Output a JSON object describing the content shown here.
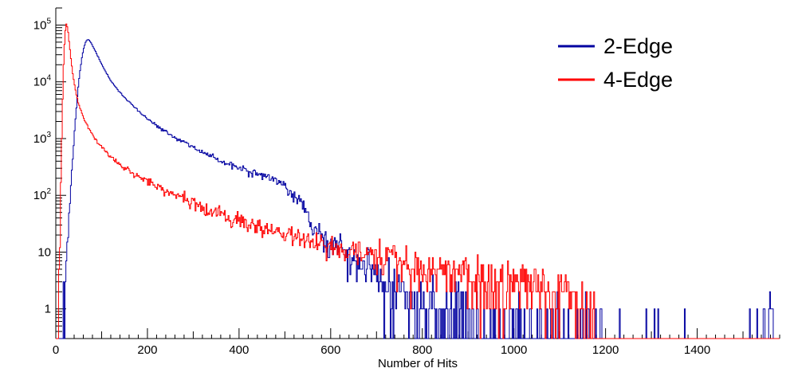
{
  "figure": {
    "background": "#ffffff",
    "axis_color": "#000000"
  },
  "chart_data": {
    "type": "line",
    "subtype": "histogram-step",
    "title": "",
    "xlabel": "Number of Hits",
    "ylabel": "",
    "y_scale": "log",
    "grid": false,
    "xlim": [
      0,
      1580
    ],
    "ylim": [
      0.3,
      200000
    ],
    "x_major_ticks": [
      0,
      200,
      400,
      600,
      800,
      1000,
      1200,
      1400
    ],
    "x_minor_step": 20,
    "y_decades": [
      0,
      1,
      2,
      3,
      4,
      5
    ],
    "legend": {
      "position": "top-right",
      "entries": [
        {
          "label": "2-Edge",
          "color": "#0000a0"
        },
        {
          "label": "4-Edge",
          "color": "#ff0000"
        }
      ]
    },
    "series": [
      {
        "name": "2-Edge",
        "color": "#0000a0",
        "bin_width": 2,
        "anchors": [
          [
            14,
            0.3
          ],
          [
            18,
            1.2
          ],
          [
            22,
            4
          ],
          [
            26,
            14
          ],
          [
            30,
            55
          ],
          [
            34,
            180
          ],
          [
            38,
            600
          ],
          [
            42,
            1800
          ],
          [
            46,
            4500
          ],
          [
            50,
            10000
          ],
          [
            54,
            18000
          ],
          [
            58,
            30000
          ],
          [
            62,
            42000
          ],
          [
            66,
            52000
          ],
          [
            70,
            56000
          ],
          [
            74,
            53000
          ],
          [
            80,
            44000
          ],
          [
            86,
            35000
          ],
          [
            92,
            28000
          ],
          [
            100,
            20500
          ],
          [
            110,
            14500
          ],
          [
            120,
            10500
          ],
          [
            135,
            7200
          ],
          [
            150,
            5300
          ],
          [
            170,
            3700
          ],
          [
            190,
            2600
          ],
          [
            210,
            1950
          ],
          [
            230,
            1500
          ],
          [
            250,
            1170
          ],
          [
            270,
            940
          ],
          [
            290,
            770
          ],
          [
            310,
            630
          ],
          [
            330,
            520
          ],
          [
            350,
            440
          ],
          [
            370,
            370
          ],
          [
            390,
            320
          ],
          [
            410,
            285
          ],
          [
            430,
            255
          ],
          [
            450,
            230
          ],
          [
            470,
            200
          ],
          [
            485,
            170
          ],
          [
            500,
            140
          ],
          [
            515,
            110
          ],
          [
            530,
            82
          ],
          [
            545,
            55
          ],
          [
            560,
            32
          ],
          [
            575,
            22
          ],
          [
            590,
            16
          ],
          [
            605,
            13
          ],
          [
            620,
            11
          ],
          [
            640,
            8.5
          ],
          [
            660,
            6.5
          ],
          [
            680,
            5
          ],
          [
            700,
            3.8
          ],
          [
            720,
            2.8
          ],
          [
            740,
            2.1
          ],
          [
            760,
            1.6
          ],
          [
            790,
            1.2
          ],
          [
            820,
            0.9
          ],
          [
            860,
            0.7
          ],
          [
            900,
            0.55
          ],
          [
            950,
            0.42
          ],
          [
            1000,
            0.34
          ],
          [
            1050,
            0.28
          ],
          [
            1100,
            0.24
          ],
          [
            1140,
            0.2
          ],
          [
            1180,
            0.14
          ],
          [
            1220,
            0.1
          ],
          [
            1260,
            0.09
          ],
          [
            1300,
            0.08
          ],
          [
            1330,
            0.03
          ],
          [
            1380,
            0.004
          ],
          [
            1480,
            0.004
          ],
          [
            1520,
            0.05
          ],
          [
            1545,
            0.2
          ],
          [
            1560,
            0.45
          ],
          [
            1568,
            0.45
          ]
        ]
      },
      {
        "name": "4-Edge",
        "color": "#ff0000",
        "bin_width": 2,
        "anchors": [
          [
            5,
            0.5
          ],
          [
            8,
            8
          ],
          [
            11,
            150
          ],
          [
            14,
            2500
          ],
          [
            17,
            20000
          ],
          [
            20,
            70000
          ],
          [
            23,
            105000
          ],
          [
            26,
            88000
          ],
          [
            29,
            52000
          ],
          [
            33,
            26000
          ],
          [
            37,
            14000
          ],
          [
            42,
            7800
          ],
          [
            47,
            5000
          ],
          [
            53,
            3400
          ],
          [
            60,
            2400
          ],
          [
            68,
            1750
          ],
          [
            76,
            1330
          ],
          [
            85,
            1020
          ],
          [
            95,
            800
          ],
          [
            105,
            640
          ],
          [
            115,
            530
          ],
          [
            130,
            410
          ],
          [
            145,
            330
          ],
          [
            160,
            272
          ],
          [
            175,
            228
          ],
          [
            190,
            192
          ],
          [
            210,
            158
          ],
          [
            230,
            132
          ],
          [
            250,
            111
          ],
          [
            270,
            94
          ],
          [
            290,
            80
          ],
          [
            310,
            68
          ],
          [
            330,
            59
          ],
          [
            350,
            51
          ],
          [
            375,
            43
          ],
          [
            400,
            36
          ],
          [
            425,
            31
          ],
          [
            450,
            27
          ],
          [
            475,
            23.5
          ],
          [
            500,
            20.5
          ],
          [
            530,
            17.5
          ],
          [
            560,
            15
          ],
          [
            590,
            13
          ],
          [
            620,
            11.3
          ],
          [
            650,
            9.9
          ],
          [
            680,
            8.7
          ],
          [
            710,
            7.7
          ],
          [
            740,
            6.8
          ],
          [
            770,
            6.1
          ],
          [
            800,
            5.5
          ],
          [
            830,
            5
          ],
          [
            860,
            4.5
          ],
          [
            890,
            4.1
          ],
          [
            920,
            3.7
          ],
          [
            950,
            3.4
          ],
          [
            980,
            3.1
          ],
          [
            1010,
            2.8
          ],
          [
            1040,
            2.5
          ],
          [
            1070,
            2.2
          ],
          [
            1100,
            2
          ],
          [
            1125,
            1.7
          ],
          [
            1145,
            1.3
          ],
          [
            1160,
            0.9
          ],
          [
            1172,
            0.5
          ],
          [
            1182,
            0.15
          ]
        ]
      }
    ]
  }
}
